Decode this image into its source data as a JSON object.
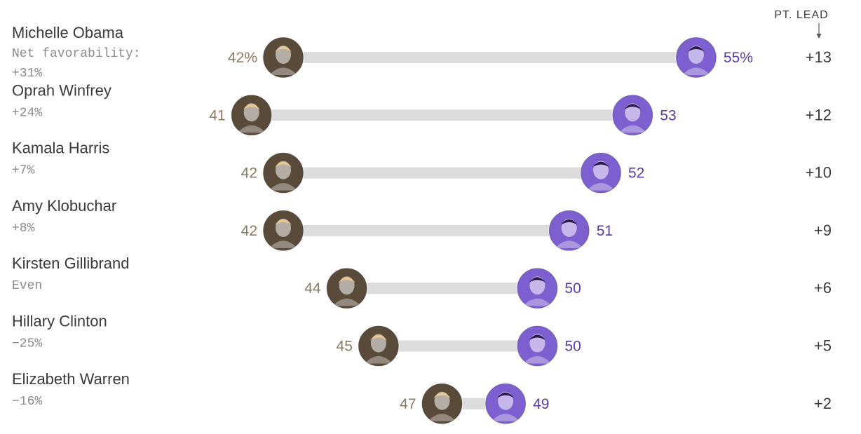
{
  "header": {
    "lead_label": "PT. LEAD"
  },
  "chart_data": {
    "type": "dumbbell",
    "opponent": "Trump",
    "colors": {
      "trump": "#8a7a62",
      "democrat": "#5a3aa0",
      "bar": "#dcdcdc",
      "democrat_avatar": "#7e5fd0",
      "trump_avatar": "#5a4a3a"
    },
    "rows": [
      {
        "name": "Michelle Obama",
        "sub_label": "Net favorability:",
        "favorability": "+31%",
        "trump": 42,
        "trump_label": "42%",
        "democrat": 55,
        "democrat_label": "55%",
        "lead": "+13"
      },
      {
        "name": "Oprah Winfrey",
        "favorability": "+24%",
        "trump": 41,
        "trump_label": "41",
        "democrat": 53,
        "democrat_label": "53",
        "lead": "+12"
      },
      {
        "name": "Kamala Harris",
        "favorability": "+7%",
        "trump": 42,
        "trump_label": "42",
        "democrat": 52,
        "democrat_label": "52",
        "lead": "+10"
      },
      {
        "name": "Amy Klobuchar",
        "favorability": "+8%",
        "trump": 42,
        "trump_label": "42",
        "democrat": 51,
        "democrat_label": "51",
        "lead": "+9"
      },
      {
        "name": "Kirsten Gillibrand",
        "favorability": "Even",
        "trump": 44,
        "trump_label": "44",
        "democrat": 50,
        "democrat_label": "50",
        "lead": "+6"
      },
      {
        "name": "Hillary Clinton",
        "favorability": "−25%",
        "trump": 45,
        "trump_label": "45",
        "democrat": 50,
        "democrat_label": "50",
        "lead": "+5"
      },
      {
        "name": "Elizabeth Warren",
        "favorability": "−16%",
        "trump": 47,
        "trump_label": "47",
        "democrat": 49,
        "democrat_label": "49",
        "lead": "+2"
      }
    ]
  }
}
